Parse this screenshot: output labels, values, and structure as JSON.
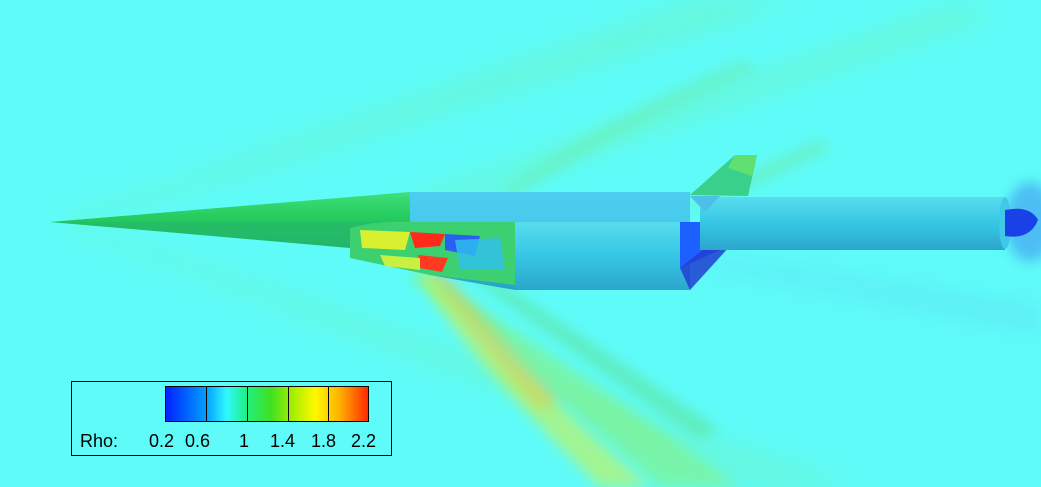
{
  "legend": {
    "variable": "Rho:",
    "ticks": [
      "0.2",
      "0.6",
      "1",
      "1.4",
      "1.8",
      "2.2"
    ]
  },
  "colors": {
    "background": "#5ffbf8",
    "low": "#0022ff",
    "mid": "#20f080",
    "high": "#ff2a00"
  }
}
